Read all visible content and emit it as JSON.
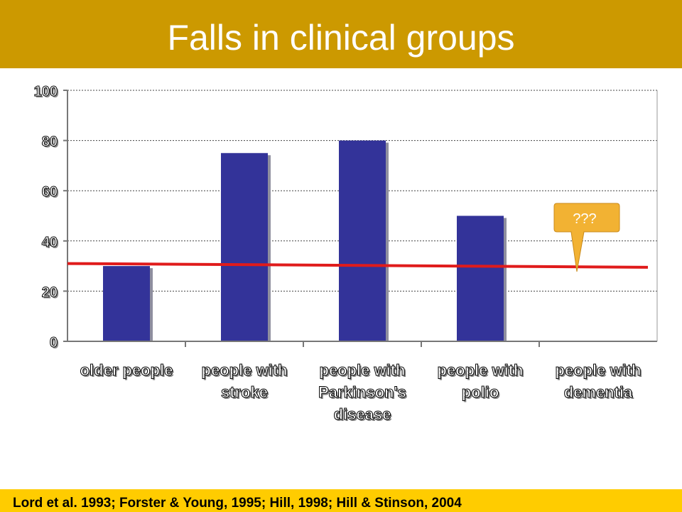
{
  "slide": {
    "title": "Falls in clinical groups",
    "footer": "Lord et al. 1993; Forster & Young, 1995; Hill, 1998; Hill & Stinson, 2004",
    "callout": "???"
  },
  "colors": {
    "title_bar": "#cc9900",
    "footer_bar": "#ffcc00",
    "bar_fill": "#333399",
    "reference_line": "#e01b1b",
    "callout_fill": "#f2b233"
  },
  "chart_data": {
    "type": "bar",
    "title": "",
    "xlabel": "",
    "ylabel": "",
    "ylim": [
      0,
      100
    ],
    "yticks": [
      0,
      20,
      40,
      60,
      80,
      100
    ],
    "grid": true,
    "categories": [
      [
        "older people"
      ],
      [
        "people with",
        "stroke"
      ],
      [
        "people with",
        "Parkinson's",
        "disease"
      ],
      [
        "people with",
        "polio"
      ],
      [
        "people with",
        "dementia"
      ]
    ],
    "values": [
      30,
      75,
      80,
      50,
      null
    ],
    "reference_line": {
      "start": 31,
      "end": 29.5
    }
  }
}
